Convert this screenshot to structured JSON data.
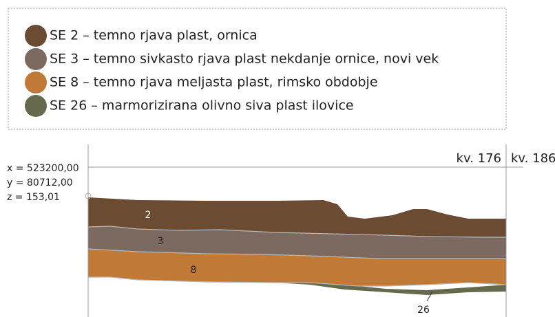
{
  "legend": [
    {
      "label": "SE 2 – temno rjava plast, ornica"
    },
    {
      "label": "SE 3 – temno sivkasto rjava plast nekdanje ornice, novi vek"
    },
    {
      "label": "SE 8 – temno rjava meljasta plast, rimsko obdobje"
    },
    {
      "label": "SE 26 – marmorizirana olivno siva plast ilovice"
    }
  ],
  "coordinates": [
    "x = 523200,00",
    "y = 80712,00",
    "z = 153,01"
  ],
  "squares": [
    "kv. 176",
    "kv. 186"
  ],
  "layer_labels": [
    "2",
    "3",
    "8",
    "26"
  ]
}
